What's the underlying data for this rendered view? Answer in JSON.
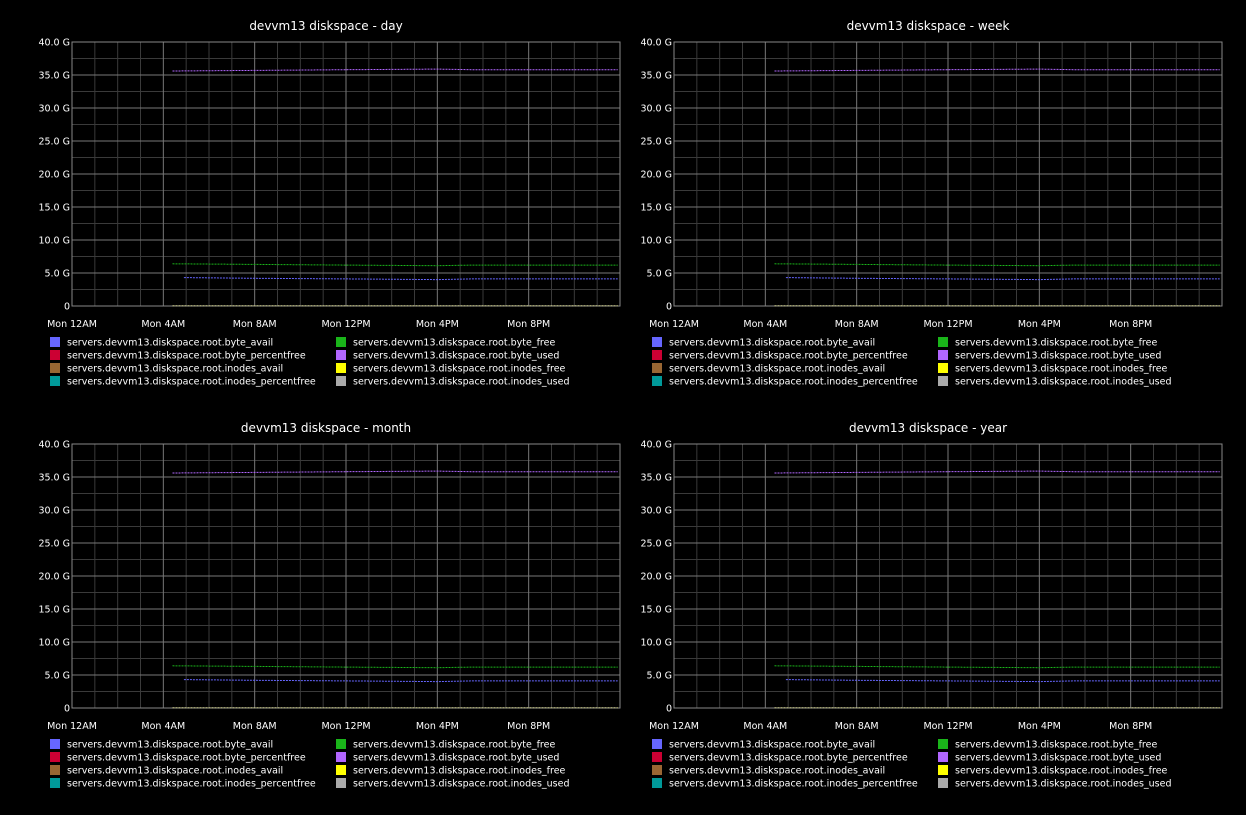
{
  "x_ticks": [
    "Mon 12AM",
    "Mon  4AM",
    "Mon  8AM",
    "Mon 12PM",
    "Mon  4PM",
    "Mon  8PM"
  ],
  "y_ticks": [
    "40.0 G",
    "35.0 G",
    "30.0 G",
    "25.0 G",
    "20.0 G",
    "15.0 G",
    "10.0 G",
    "5.0 G",
    "0"
  ],
  "legend": [
    {
      "label": "servers.devvm13.diskspace.root.byte_avail",
      "color": "#6666ff"
    },
    {
      "label": "servers.devvm13.diskspace.root.byte_free",
      "color": "#1ab51a"
    },
    {
      "label": "servers.devvm13.diskspace.root.byte_percentfree",
      "color": "#cc0033"
    },
    {
      "label": "servers.devvm13.diskspace.root.byte_used",
      "color": "#b266ff"
    },
    {
      "label": "servers.devvm13.diskspace.root.inodes_avail",
      "color": "#996633"
    },
    {
      "label": "servers.devvm13.diskspace.root.inodes_free",
      "color": "#ffff00"
    },
    {
      "label": "servers.devvm13.diskspace.root.inodes_percentfree",
      "color": "#009999"
    },
    {
      "label": "servers.devvm13.diskspace.root.inodes_used",
      "color": "#aaaaaa"
    }
  ],
  "chart_data": [
    {
      "type": "line",
      "title": "devvm13 diskspace - day",
      "x_hours": [
        0,
        4,
        8,
        12,
        16,
        20,
        24
      ],
      "ylim": [
        0,
        40
      ],
      "y_unit": "G",
      "grid": true,
      "legend_position": "bottom",
      "series": [
        {
          "name": "servers.devvm13.diskspace.root.byte_used",
          "color": "#b266ff",
          "x": [
            4.4,
            8,
            12,
            16,
            17.5,
            20,
            23.9
          ],
          "y": [
            35.6,
            35.7,
            35.8,
            35.9,
            35.8,
            35.8,
            35.8
          ]
        },
        {
          "name": "servers.devvm13.diskspace.root.byte_free",
          "color": "#1ab51a",
          "x": [
            4.4,
            8,
            12,
            16,
            17.5,
            20,
            23.9
          ],
          "y": [
            6.4,
            6.3,
            6.2,
            6.1,
            6.2,
            6.2,
            6.2
          ]
        },
        {
          "name": "servers.devvm13.diskspace.root.byte_avail",
          "color": "#6666ff",
          "x": [
            4.9,
            8,
            12,
            16,
            17.5,
            20,
            23.9
          ],
          "y": [
            4.3,
            4.2,
            4.1,
            4.0,
            4.1,
            4.1,
            4.1
          ]
        },
        {
          "name": "servers.devvm13.diskspace.root.inodes_free",
          "color": "#ffff00",
          "x": [
            4.4,
            23.9
          ],
          "y": [
            0.05,
            0.05
          ]
        },
        {
          "name": "servers.devvm13.diskspace.root.inodes_used",
          "color": "#aaaaaa",
          "x": [
            4.4,
            23.9
          ],
          "y": [
            0.02,
            0.02
          ]
        }
      ]
    },
    {
      "type": "line",
      "title": "devvm13 diskspace - week",
      "x_hours": [
        0,
        4,
        8,
        12,
        16,
        20,
        24
      ],
      "ylim": [
        0,
        40
      ],
      "y_unit": "G",
      "grid": true,
      "legend_position": "bottom",
      "series": [
        {
          "name": "servers.devvm13.diskspace.root.byte_used",
          "color": "#b266ff",
          "x": [
            4.4,
            8,
            12,
            16,
            17.5,
            20,
            23.9
          ],
          "y": [
            35.6,
            35.7,
            35.8,
            35.9,
            35.8,
            35.8,
            35.8
          ]
        },
        {
          "name": "servers.devvm13.diskspace.root.byte_free",
          "color": "#1ab51a",
          "x": [
            4.4,
            8,
            12,
            16,
            17.5,
            20,
            23.9
          ],
          "y": [
            6.4,
            6.3,
            6.2,
            6.1,
            6.2,
            6.2,
            6.2
          ]
        },
        {
          "name": "servers.devvm13.diskspace.root.byte_avail",
          "color": "#6666ff",
          "x": [
            4.9,
            8,
            12,
            16,
            17.5,
            20,
            23.9
          ],
          "y": [
            4.3,
            4.2,
            4.1,
            4.0,
            4.1,
            4.1,
            4.1
          ]
        },
        {
          "name": "servers.devvm13.diskspace.root.inodes_free",
          "color": "#ffff00",
          "x": [
            4.4,
            23.9
          ],
          "y": [
            0.05,
            0.05
          ]
        },
        {
          "name": "servers.devvm13.diskspace.root.inodes_used",
          "color": "#aaaaaa",
          "x": [
            4.4,
            23.9
          ],
          "y": [
            0.02,
            0.02
          ]
        }
      ]
    },
    {
      "type": "line",
      "title": "devvm13 diskspace - month",
      "x_hours": [
        0,
        4,
        8,
        12,
        16,
        20,
        24
      ],
      "ylim": [
        0,
        40
      ],
      "y_unit": "G",
      "grid": true,
      "legend_position": "bottom",
      "series": [
        {
          "name": "servers.devvm13.diskspace.root.byte_used",
          "color": "#b266ff",
          "x": [
            4.4,
            8,
            12,
            16,
            17.5,
            20,
            23.9
          ],
          "y": [
            35.6,
            35.7,
            35.8,
            35.9,
            35.8,
            35.8,
            35.8
          ]
        },
        {
          "name": "servers.devvm13.diskspace.root.byte_free",
          "color": "#1ab51a",
          "x": [
            4.4,
            8,
            12,
            16,
            17.5,
            20,
            23.9
          ],
          "y": [
            6.4,
            6.3,
            6.2,
            6.1,
            6.2,
            6.2,
            6.2
          ]
        },
        {
          "name": "servers.devvm13.diskspace.root.byte_avail",
          "color": "#6666ff",
          "x": [
            4.9,
            8,
            12,
            16,
            17.5,
            20,
            23.9
          ],
          "y": [
            4.3,
            4.2,
            4.1,
            4.0,
            4.1,
            4.1,
            4.1
          ]
        },
        {
          "name": "servers.devvm13.diskspace.root.inodes_free",
          "color": "#ffff00",
          "x": [
            4.4,
            23.9
          ],
          "y": [
            0.05,
            0.05
          ]
        },
        {
          "name": "servers.devvm13.diskspace.root.inodes_used",
          "color": "#aaaaaa",
          "x": [
            4.4,
            23.9
          ],
          "y": [
            0.02,
            0.02
          ]
        }
      ]
    },
    {
      "type": "line",
      "title": "devvm13 diskspace - year",
      "x_hours": [
        0,
        4,
        8,
        12,
        16,
        20,
        24
      ],
      "ylim": [
        0,
        40
      ],
      "y_unit": "G",
      "grid": true,
      "legend_position": "bottom",
      "series": [
        {
          "name": "servers.devvm13.diskspace.root.byte_used",
          "color": "#b266ff",
          "x": [
            4.4,
            8,
            12,
            16,
            17.5,
            20,
            23.9
          ],
          "y": [
            35.6,
            35.7,
            35.8,
            35.9,
            35.8,
            35.8,
            35.8
          ]
        },
        {
          "name": "servers.devvm13.diskspace.root.byte_free",
          "color": "#1ab51a",
          "x": [
            4.4,
            8,
            12,
            16,
            17.5,
            20,
            23.9
          ],
          "y": [
            6.4,
            6.3,
            6.2,
            6.1,
            6.2,
            6.2,
            6.2
          ]
        },
        {
          "name": "servers.devvm13.diskspace.root.byte_avail",
          "color": "#6666ff",
          "x": [
            4.9,
            8,
            12,
            16,
            17.5,
            20,
            23.9
          ],
          "y": [
            4.3,
            4.2,
            4.1,
            4.0,
            4.1,
            4.1,
            4.1
          ]
        },
        {
          "name": "servers.devvm13.diskspace.root.inodes_free",
          "color": "#ffff00",
          "x": [
            4.4,
            23.9
          ],
          "y": [
            0.05,
            0.05
          ]
        },
        {
          "name": "servers.devvm13.diskspace.root.inodes_used",
          "color": "#aaaaaa",
          "x": [
            4.4,
            23.9
          ],
          "y": [
            0.02,
            0.02
          ]
        }
      ]
    }
  ]
}
